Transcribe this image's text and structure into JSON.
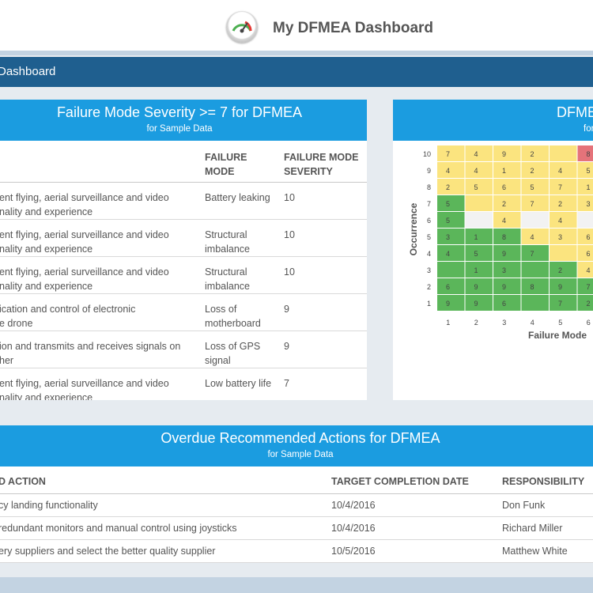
{
  "header": {
    "app_title": "My DFMEA Dashboard",
    "logo_icon": "gauge-icon"
  },
  "nav": {
    "label": "Dashboard"
  },
  "failure_panel": {
    "title": "Failure Mode Severity >= 7 for DFMEA",
    "subtitle": "for Sample Data",
    "columns": [
      "FAILURE MODE",
      "FAILURE MODE SEVERITY"
    ],
    "rows": [
      {
        "function": [
          "ent flying, aerial surveillance and video",
          "nality and experience"
        ],
        "mode": [
          "Battery leaking"
        ],
        "severity": "10"
      },
      {
        "function": [
          "ent flying, aerial surveillance and video",
          "nality and experience"
        ],
        "mode": [
          "Structural",
          "imbalance"
        ],
        "severity": "10"
      },
      {
        "function": [
          "ent flying, aerial surveillance and video",
          "nality and experience"
        ],
        "mode": [
          "Structural",
          "imbalance"
        ],
        "severity": "10"
      },
      {
        "function": [
          "ication and control of electronic",
          "e drone"
        ],
        "mode": [
          "Loss of",
          "motherboard"
        ],
        "severity": "9"
      },
      {
        "function": [
          "ion and transmits and receives signals on",
          "her"
        ],
        "mode": [
          "Loss of GPS",
          "signal"
        ],
        "severity": "9"
      },
      {
        "function": [
          "ent flying, aerial surveillance and video",
          "nality and experience"
        ],
        "mode": [
          "Low battery life"
        ],
        "severity": "7"
      }
    ]
  },
  "matrix_panel": {
    "title": "DFME",
    "subtitle": "for",
    "colors": {
      "red": "#e5737a",
      "yellow": "#fbe47f",
      "green": "#5bb65a",
      "empty": "#f2f2f2"
    },
    "chart_data": {
      "type": "heatmap",
      "ylabel": "Occurrence",
      "xlabel": "Failure Mode",
      "x_ticks": [
        "1",
        "2",
        "3",
        "4",
        "5",
        "6"
      ],
      "y_ticks": [
        "10",
        "9",
        "8",
        "7",
        "6",
        "5",
        "4",
        "3",
        "2",
        "1"
      ],
      "cells": [
        [
          {
            "v": "7",
            "c": "yellow"
          },
          {
            "v": "4",
            "c": "yellow"
          },
          {
            "v": "9",
            "c": "yellow"
          },
          {
            "v": "2",
            "c": "yellow"
          },
          {
            "v": "",
            "c": "yellow"
          },
          {
            "v": "8",
            "c": "red"
          }
        ],
        [
          {
            "v": "4",
            "c": "yellow"
          },
          {
            "v": "4",
            "c": "yellow"
          },
          {
            "v": "1",
            "c": "yellow"
          },
          {
            "v": "2",
            "c": "yellow"
          },
          {
            "v": "4",
            "c": "yellow"
          },
          {
            "v": "5",
            "c": "yellow"
          }
        ],
        [
          {
            "v": "2",
            "c": "yellow"
          },
          {
            "v": "5",
            "c": "yellow"
          },
          {
            "v": "6",
            "c": "yellow"
          },
          {
            "v": "5",
            "c": "yellow"
          },
          {
            "v": "7",
            "c": "yellow"
          },
          {
            "v": "1",
            "c": "yellow"
          }
        ],
        [
          {
            "v": "5",
            "c": "green"
          },
          {
            "v": "",
            "c": "yellow"
          },
          {
            "v": "2",
            "c": "yellow"
          },
          {
            "v": "7",
            "c": "yellow"
          },
          {
            "v": "2",
            "c": "yellow"
          },
          {
            "v": "3",
            "c": "yellow"
          }
        ],
        [
          {
            "v": "5",
            "c": "green"
          },
          {
            "v": "",
            "c": "empty"
          },
          {
            "v": "4",
            "c": "yellow"
          },
          {
            "v": "",
            "c": "empty"
          },
          {
            "v": "4",
            "c": "yellow"
          },
          {
            "v": "",
            "c": "empty"
          }
        ],
        [
          {
            "v": "3",
            "c": "green"
          },
          {
            "v": "1",
            "c": "green"
          },
          {
            "v": "8",
            "c": "green"
          },
          {
            "v": "4",
            "c": "yellow"
          },
          {
            "v": "3",
            "c": "yellow"
          },
          {
            "v": "6",
            "c": "yellow"
          }
        ],
        [
          {
            "v": "4",
            "c": "green"
          },
          {
            "v": "5",
            "c": "green"
          },
          {
            "v": "9",
            "c": "green"
          },
          {
            "v": "7",
            "c": "green"
          },
          {
            "v": "",
            "c": "yellow"
          },
          {
            "v": "6",
            "c": "yellow"
          }
        ],
        [
          {
            "v": "",
            "c": "green"
          },
          {
            "v": "1",
            "c": "green"
          },
          {
            "v": "3",
            "c": "green"
          },
          {
            "v": "",
            "c": "green"
          },
          {
            "v": "2",
            "c": "green"
          },
          {
            "v": "4",
            "c": "yellow"
          }
        ],
        [
          {
            "v": "6",
            "c": "green"
          },
          {
            "v": "9",
            "c": "green"
          },
          {
            "v": "9",
            "c": "green"
          },
          {
            "v": "8",
            "c": "green"
          },
          {
            "v": "9",
            "c": "green"
          },
          {
            "v": "7",
            "c": "green"
          }
        ],
        [
          {
            "v": "9",
            "c": "green"
          },
          {
            "v": "9",
            "c": "green"
          },
          {
            "v": "6",
            "c": "green"
          },
          {
            "v": "",
            "c": "green"
          },
          {
            "v": "7",
            "c": "green"
          },
          {
            "v": "2",
            "c": "green"
          }
        ]
      ]
    }
  },
  "actions_panel": {
    "title": "Overdue Recommended Actions for DFMEA",
    "subtitle": "for Sample Data",
    "columns": [
      "D ACTION",
      "TARGET COMPLETION DATE",
      "RESPONSIBILITY"
    ],
    "rows": [
      {
        "action": "cy landing functionality",
        "date": "10/4/2016",
        "responsibility": "Don Funk"
      },
      {
        "action": "redundant monitors and manual control using joysticks",
        "date": "10/4/2016",
        "responsibility": "Richard Miller"
      },
      {
        "action": "ery suppliers and select the better quality supplier",
        "date": "10/5/2016",
        "responsibility": "Matthew White"
      }
    ]
  }
}
